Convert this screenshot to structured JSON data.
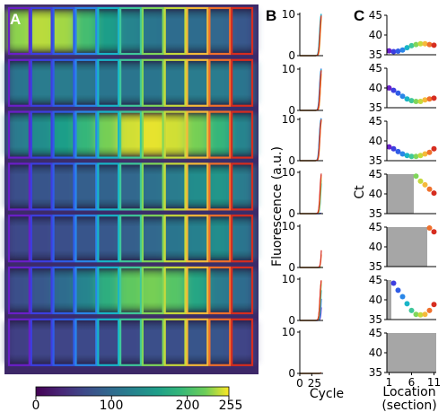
{
  "panel_labels": {
    "a": "A",
    "b": "B",
    "c": "C"
  },
  "colorbar": {
    "ticks": [
      "0",
      "100",
      "200",
      "255"
    ],
    "min": 0,
    "max": 255
  },
  "panel_b": {
    "ylabel": "Fluorescence (a.u.)",
    "xlabel": "Cycle",
    "y_ticks": [
      "0",
      "10"
    ],
    "x_ticks": [
      "0",
      "25"
    ]
  },
  "panel_c": {
    "ylabel": "Ct",
    "xlabel_line1": "Location",
    "xlabel_line2": "(section)",
    "y_ticks": [
      "35",
      "40",
      "45"
    ],
    "x_ticks": [
      "1",
      "6",
      "11"
    ]
  },
  "chart_data": [
    {
      "type": "heatmap",
      "panel": "A",
      "colormap": "viridis",
      "value_range": [
        0,
        255
      ],
      "rows": 7,
      "sections_per_row": 11,
      "row_intensity_profiles": [
        [
          230,
          240,
          235,
          200,
          160,
          130,
          110,
          100,
          100,
          95,
          80
        ],
        [
          110,
          120,
          120,
          115,
          110,
          110,
          110,
          115,
          120,
          120,
          110
        ],
        [
          120,
          140,
          160,
          190,
          225,
          245,
          250,
          245,
          225,
          190,
          130
        ],
        [
          70,
          75,
          80,
          85,
          90,
          95,
          105,
          120,
          140,
          150,
          120
        ],
        [
          65,
          65,
          70,
          75,
          80,
          85,
          95,
          110,
          125,
          140,
          110
        ],
        [
          70,
          80,
          100,
          130,
          180,
          215,
          225,
          210,
          170,
          120,
          100
        ],
        [
          55,
          60,
          60,
          65,
          65,
          65,
          70,
          70,
          75,
          75,
          60
        ]
      ]
    },
    {
      "type": "line",
      "panel": "B",
      "x_range": [
        0,
        45
      ],
      "y_range": [
        0,
        10
      ],
      "curve_colors": [
        "#6a1fc9",
        "#2f5ce6",
        "#19b5c7",
        "#4fcf6f",
        "#d8d43a",
        "#f28a2e",
        "#d62d20"
      ],
      "rows": [
        {
          "onset_cycles": [
            42,
            41.5,
            41,
            42,
            43,
            42.5,
            42
          ]
        },
        {
          "onset_cycles": [
            42,
            41,
            41.5,
            42,
            43,
            43,
            42
          ]
        },
        {
          "onset_cycles": [
            41,
            40.5,
            41,
            41.5,
            42,
            42,
            41.5
          ]
        },
        {
          "onset_cycles": [
            50,
            50,
            44,
            43.5,
            43,
            42.5,
            42
          ]
        },
        {
          "onset_cycles": [
            50,
            50,
            50,
            50,
            50,
            46,
            45.5
          ]
        },
        {
          "onset_cycles": [
            46,
            45,
            44,
            43,
            42.5,
            42,
            42
          ]
        },
        {
          "onset_cycles": [
            50,
            50,
            50,
            50,
            50,
            50,
            50
          ]
        }
      ]
    },
    {
      "type": "scatter",
      "panel": "C",
      "x_range": [
        0.5,
        11.5
      ],
      "y_range": [
        35,
        45
      ],
      "point_colors": [
        "#6a1fc9",
        "#3d3ee0",
        "#2f5ce6",
        "#2a86e8",
        "#19b5c7",
        "#3fc79a",
        "#7fd65a",
        "#c6d93c",
        "#f5b93a",
        "#f0702c",
        "#d62d20"
      ],
      "rows": [
        {
          "ct": [
            36.0,
            35.8,
            35.9,
            36.2,
            36.8,
            37.3,
            37.6,
            37.8,
            37.8,
            37.6,
            37.4
          ],
          "no_amplification_through_section": 0
        },
        {
          "ct": [
            40.0,
            39.4,
            38.7,
            37.9,
            37.2,
            36.8,
            36.6,
            36.6,
            37.0,
            37.2,
            37.4
          ],
          "no_amplification_through_section": 0
        },
        {
          "ct": [
            38.5,
            38.0,
            37.3,
            36.7,
            36.3,
            36.1,
            36.1,
            36.3,
            36.7,
            37.1,
            38.0
          ],
          "no_amplification_through_section": 0
        },
        {
          "ct": [
            null,
            null,
            null,
            null,
            null,
            null,
            44.5,
            43.2,
            42.3,
            41.2,
            40.2
          ],
          "no_amplification_through_section": 6
        },
        {
          "ct": [
            null,
            null,
            null,
            null,
            null,
            null,
            null,
            null,
            null,
            45.5,
            43.8
          ],
          "no_amplification_through_section": 9
        },
        {
          "ct": [
            null,
            44.2,
            42.4,
            40.8,
            39.0,
            37.3,
            36.3,
            36.2,
            36.3,
            37.3,
            38.8
          ],
          "no_amplification_through_section": 1
        },
        {
          "ct": [
            null,
            null,
            null,
            null,
            null,
            null,
            null,
            null,
            null,
            null,
            null
          ],
          "no_amplification_through_section": 11
        }
      ]
    }
  ]
}
